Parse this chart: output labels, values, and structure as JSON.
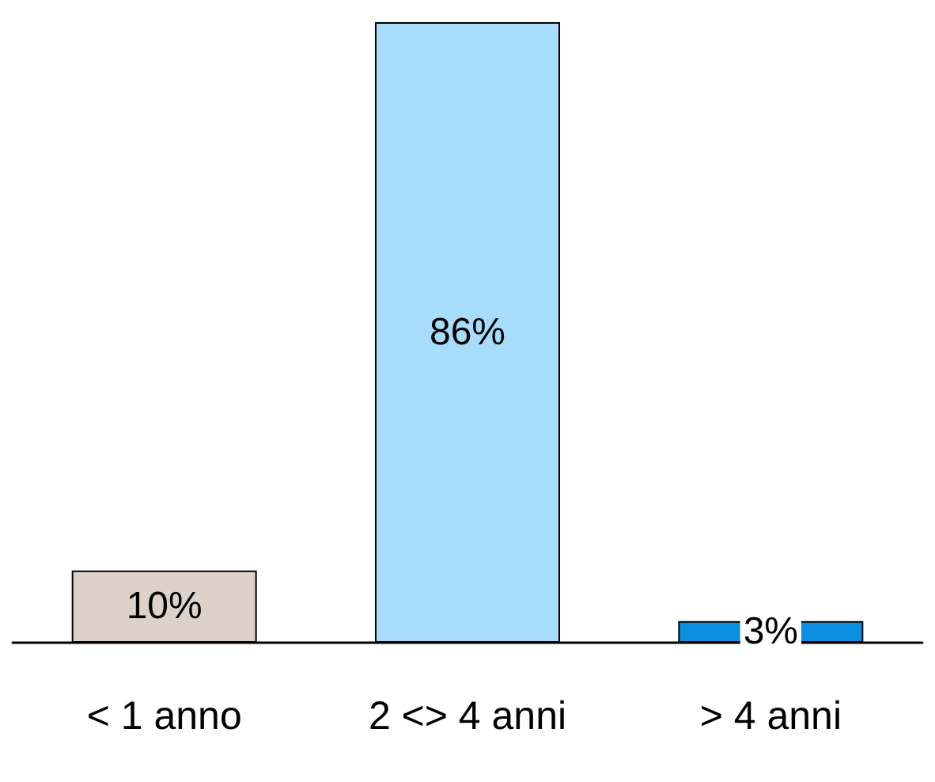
{
  "chart_data": {
    "type": "bar",
    "categories": [
      "< 1 anno",
      "2 <> 4 anni",
      "> 4 anni"
    ],
    "values": [
      10,
      86,
      3
    ],
    "colors": [
      "#dcd2ca",
      "#a8dcfb",
      "#0b8fe3"
    ],
    "value_labels": [
      "10%",
      "86%",
      "3%"
    ],
    "ylim": [
      0,
      86
    ]
  }
}
